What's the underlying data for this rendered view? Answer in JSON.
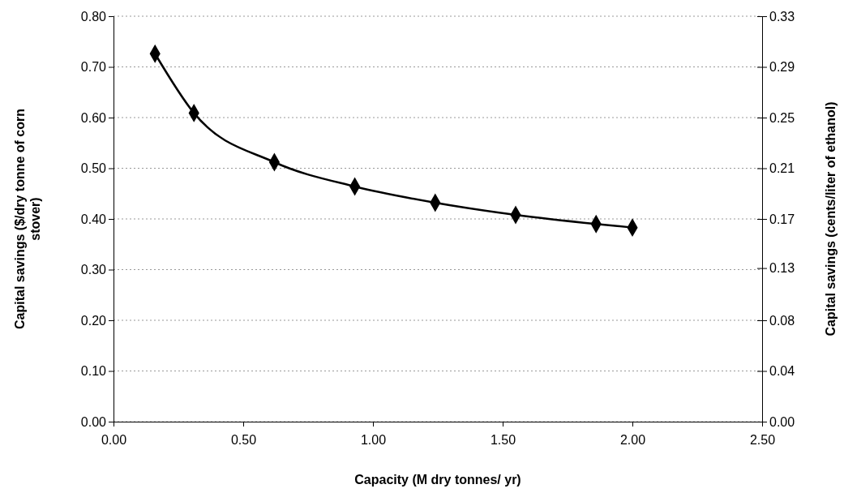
{
  "chart_data": {
    "type": "line",
    "xlabel": "Capacity (M dry tonnes/ yr)",
    "ylabel": "Capital savings ($/dry tonne of corn stover)",
    "y2label": "Capital savings (cents/liter of ethanol)",
    "x": [
      0.16,
      0.31,
      0.62,
      0.93,
      1.24,
      1.55,
      1.86,
      2.0
    ],
    "series": [
      {
        "color": "#000000",
        "values": [
          0.726,
          0.609,
          0.512,
          0.464,
          0.432,
          0.408,
          0.39,
          0.383
        ]
      }
    ],
    "xlim": [
      0,
      2.5
    ],
    "xticks": [
      {
        "value": 0,
        "label": "0.00"
      },
      {
        "value": 0.5,
        "label": "0.50"
      },
      {
        "value": 1,
        "label": "1.00"
      },
      {
        "value": 1.5,
        "label": "1.50"
      },
      {
        "value": 2,
        "label": "2.00"
      },
      {
        "value": 2.5,
        "label": "2.50"
      }
    ],
    "ylim": [
      0,
      0.8
    ],
    "yticks": [
      {
        "value": 0,
        "label": "0.00"
      },
      {
        "value": 0.1,
        "label": "0.10"
      },
      {
        "value": 0.2,
        "label": "0.20"
      },
      {
        "value": 0.3,
        "label": "0.30"
      },
      {
        "value": 0.4,
        "label": "0.40"
      },
      {
        "value": 0.5,
        "label": "0.50"
      },
      {
        "value": 0.6,
        "label": "0.60"
      },
      {
        "value": 0.7,
        "label": "0.70"
      },
      {
        "value": 0.8,
        "label": "0.80"
      }
    ],
    "y2lim": [
      0,
      0.33
    ],
    "y2ticks": [
      {
        "value": 0,
        "label": "0.00"
      },
      {
        "value": 0.04125,
        "label": "0.04"
      },
      {
        "value": 0.0825,
        "label": "0.08"
      },
      {
        "value": 0.125,
        "label": "0.13"
      },
      {
        "value": 0.165,
        "label": "0.17"
      },
      {
        "value": 0.20625,
        "label": "0.21"
      },
      {
        "value": 0.2475,
        "label": "0.25"
      },
      {
        "value": 0.28875,
        "label": "0.29"
      },
      0.33
    ],
    "grid": "y",
    "marker": "diamond",
    "line_style": "solid"
  }
}
